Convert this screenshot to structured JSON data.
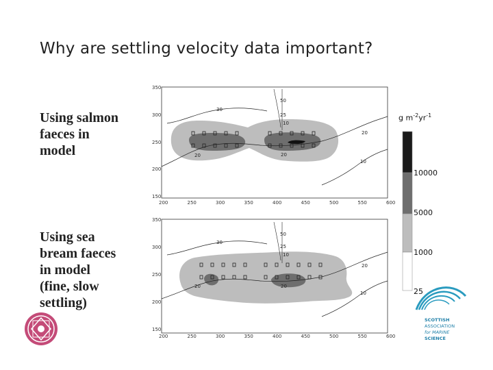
{
  "title": "Why are settling velocity data important?",
  "captions": {
    "top": "Using salmon\nfaeces in\nmodel",
    "bottom": "Using sea\nbream faeces\nin model\n(fine, slow\nsettling)"
  },
  "plot": {
    "x_ticks": [
      "200",
      "250",
      "300",
      "350",
      "400",
      "450",
      "500",
      "550",
      "600"
    ],
    "y_ticks": [
      "350",
      "300",
      "250",
      "200",
      "150"
    ],
    "contour_labels_top": [
      "30",
      "50",
      "25",
      "10",
      "20",
      "20",
      "20",
      "10"
    ],
    "contour_labels_bottom": [
      "30",
      "50",
      "25",
      "10",
      "20",
      "20",
      "20",
      "10"
    ]
  },
  "legend": {
    "unit_base": "g m",
    "unit_exp1": "-2",
    "unit_mid": "yr",
    "unit_exp2": "-1",
    "levels": [
      "10000",
      "5000",
      "1000",
      "25"
    ],
    "colors": [
      "#1a1a1a",
      "#6e6e6e",
      "#bdbdbd",
      "#ffffff"
    ]
  },
  "logos": {
    "right": [
      "SCOTTISH",
      "ASSOCIATION",
      "for MARINE",
      "SCIENCE"
    ]
  }
}
